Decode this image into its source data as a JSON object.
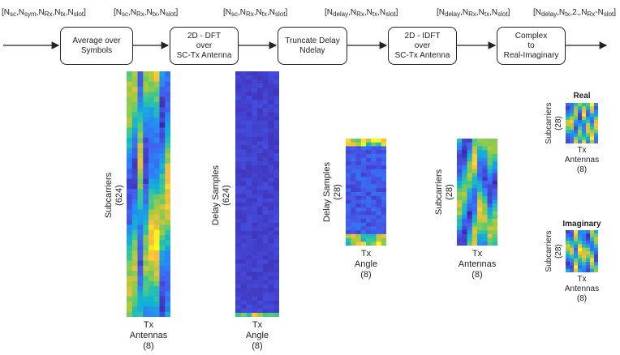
{
  "dims": [
    {
      "parts": [
        [
          "",
          "[N"
        ],
        [
          "sub",
          "sc"
        ],
        [
          "",
          ",N"
        ],
        [
          "sub",
          "sym"
        ],
        [
          "",
          ",N"
        ],
        [
          "sub",
          "Rx"
        ],
        [
          "",
          ",N"
        ],
        [
          "sub",
          "tx"
        ],
        [
          "",
          ",N"
        ],
        [
          "sub",
          "slot"
        ],
        [
          "",
          "]"
        ]
      ]
    },
    {
      "parts": [
        [
          "",
          "[N"
        ],
        [
          "sub",
          "sc"
        ],
        [
          "",
          ",N"
        ],
        [
          "sub",
          "Rx"
        ],
        [
          "",
          ",N"
        ],
        [
          "sub",
          "tx"
        ],
        [
          "",
          ",N"
        ],
        [
          "sub",
          "slot"
        ],
        [
          "",
          "]"
        ]
      ]
    },
    {
      "parts": [
        [
          "",
          "[N"
        ],
        [
          "sub",
          "sc"
        ],
        [
          "",
          ",N"
        ],
        [
          "sub",
          "Rx"
        ],
        [
          "",
          ",N"
        ],
        [
          "sub",
          "tx"
        ],
        [
          "",
          ",N"
        ],
        [
          "sub",
          "slot"
        ],
        [
          "",
          "]"
        ]
      ]
    },
    {
      "parts": [
        [
          "",
          "[N"
        ],
        [
          "sub",
          "delay"
        ],
        [
          "",
          ",N"
        ],
        [
          "sub",
          "Rx"
        ],
        [
          "",
          ",N"
        ],
        [
          "sub",
          "tx"
        ],
        [
          "",
          ",N"
        ],
        [
          "sub",
          "slot"
        ],
        [
          "",
          "]"
        ]
      ]
    },
    {
      "parts": [
        [
          "",
          "[N"
        ],
        [
          "sub",
          "delay"
        ],
        [
          "",
          ",N"
        ],
        [
          "sub",
          "Rx"
        ],
        [
          "",
          ",N"
        ],
        [
          "sub",
          "tx"
        ],
        [
          "",
          ",N"
        ],
        [
          "sub",
          "slot"
        ],
        [
          "",
          "]"
        ]
      ]
    },
    {
      "parts": [
        [
          "",
          "[N"
        ],
        [
          "sub",
          "delay"
        ],
        [
          "",
          ",N"
        ],
        [
          "sub",
          "tx"
        ],
        [
          "",
          ",2,,N"
        ],
        [
          "sub",
          "Rx"
        ],
        [
          "",
          "-N"
        ],
        [
          "sub",
          "slot"
        ],
        [
          "",
          "]"
        ]
      ]
    }
  ],
  "steps": [
    {
      "label": "Average over\nSymbols"
    },
    {
      "label": "2D - DFT\nover\nSC-Tx Antenna"
    },
    {
      "label": "Truncate Delay\nNdelay"
    },
    {
      "label": "2D - IDFT\nover\nSC-Tx Antenna"
    },
    {
      "label": "Complex\nto\nReal-Imaginary"
    }
  ],
  "plots": {
    "p1": {
      "ylabel": "Subcarriers\n(624)",
      "xlabel": "Tx\nAntennas\n(8)",
      "palette": "mixed"
    },
    "p2": {
      "ylabel": "Delay Samples\n(624)",
      "xlabel": "Tx\nAngle\n(8)",
      "palette": "dark"
    },
    "p3": {
      "ylabel": "Delay Samples\n(28)",
      "xlabel": "Tx\nAngle\n(8)",
      "palette": "trunc"
    },
    "p4": {
      "ylabel": "Subcarriers\n(28)",
      "xlabel": "Tx\nAntennas\n(8)",
      "palette": "mixed"
    },
    "p5": {
      "title": "Real",
      "ylabel": "Subcarriers\n(28)",
      "xlabel": "Tx\nAntennas\n(8)",
      "palette": "mixed"
    },
    "p6": {
      "title": "Imaginary",
      "ylabel": "Subcarriers\n(28)",
      "xlabel": "Tx\nAntennas\n(8)",
      "palette": "mixed"
    }
  }
}
